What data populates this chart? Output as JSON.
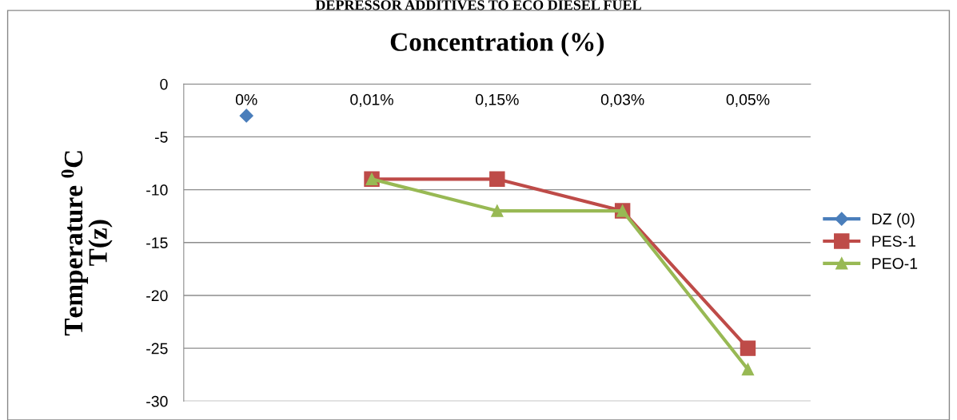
{
  "chart_data": {
    "type": "line",
    "title": "DEPRESSOR ADDITIVES TO ECO DIESEL FUEL",
    "xlabel": "Concentration (%)",
    "ylabel": "Temperature $^{0}$C\nT(z)",
    "categories": [
      "0%",
      "0,01%",
      "0,15%",
      "0,03%",
      "0,05%"
    ],
    "series": [
      {
        "name": "DZ (0)",
        "color": "#4a7ebb",
        "marker": "diamond",
        "values": [
          -3,
          null,
          null,
          null,
          null
        ]
      },
      {
        "name": "PES-1",
        "color": "#be4b48",
        "marker": "square",
        "values": [
          null,
          -9,
          -9,
          -12,
          -25
        ]
      },
      {
        "name": "PEO-1",
        "color": "#98b954",
        "marker": "triangle",
        "values": [
          null,
          -9,
          -12,
          -12,
          -27
        ]
      }
    ],
    "ylim": [
      -30,
      0
    ],
    "yticks": [
      -30,
      -25,
      -20,
      -15,
      -10,
      -5,
      0
    ],
    "grid": "y",
    "legend": "right"
  }
}
